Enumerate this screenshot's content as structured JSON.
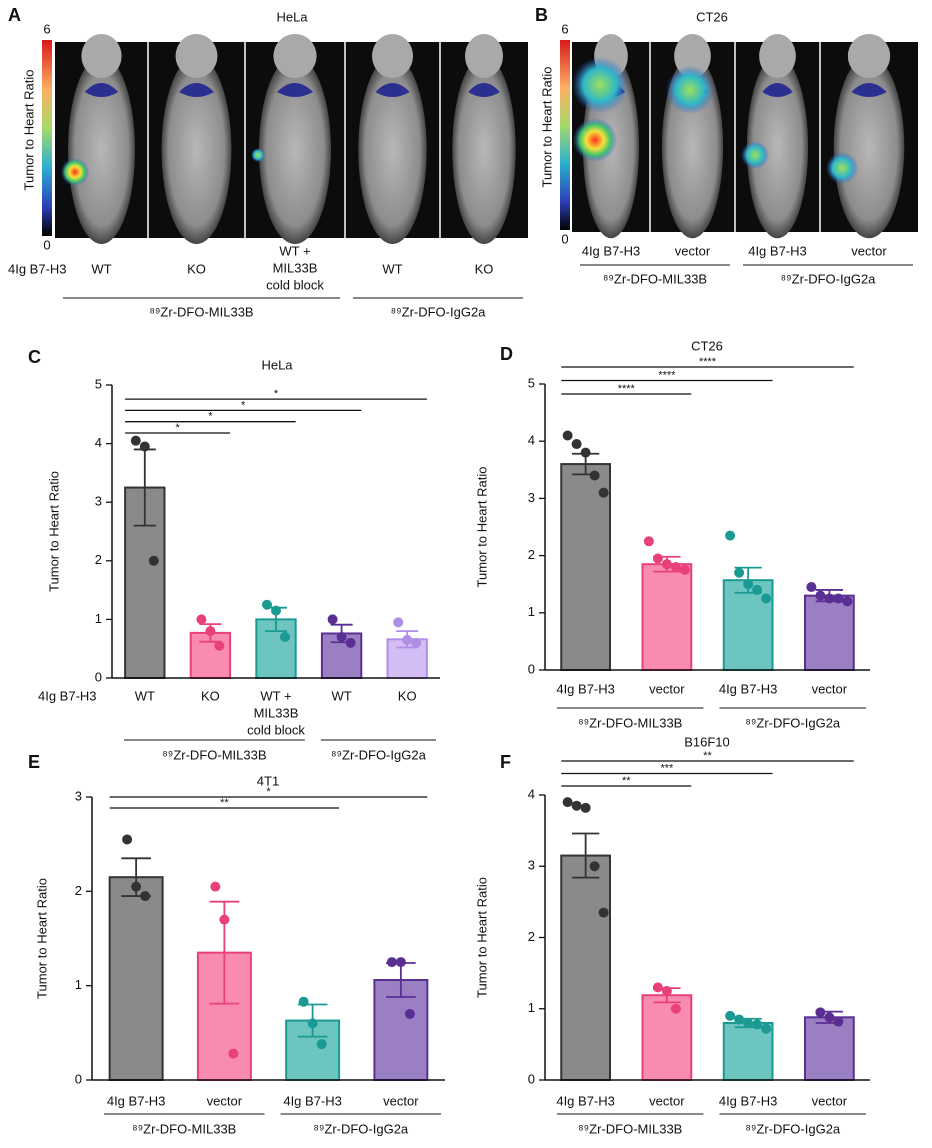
{
  "images": [
    {
      "label": "A",
      "title": "HeLa",
      "scale": [
        0,
        6
      ],
      "axis_label": "Tumor to Heart Ratio",
      "row_label": "4Ig B7-H3",
      "columns": [
        "WT",
        "KO",
        [
          "WT +",
          "MIL33B",
          "cold block"
        ],
        "WT",
        "KO"
      ],
      "groups": [
        {
          "label": "⁸⁹Zr-DFO-MIL33B",
          "from": 0,
          "to": 2
        },
        {
          "label": "⁸⁹Zr-DFO-IgG2a",
          "from": 3,
          "to": 4
        }
      ]
    },
    {
      "label": "B",
      "title": "CT26",
      "scale": [
        0,
        6
      ],
      "axis_label": "Tumor to Heart Ratio",
      "columns": [
        "4Ig B7-H3",
        "vector",
        "4Ig B7-H3",
        "vector"
      ],
      "groups": [
        {
          "label": "⁸⁹Zr-DFO-MIL33B",
          "from": 0,
          "to": 1
        },
        {
          "label": "⁸⁹Zr-DFO-IgG2a",
          "from": 2,
          "to": 3
        }
      ]
    }
  ],
  "chart_data": [
    {
      "type": "bar",
      "panel": "C",
      "title": "HeLa",
      "ylabel": "Tumor to Heart Ratio",
      "row_label": "4Ig B7-H3",
      "categories": [
        "WT",
        "KO",
        [
          "WT +",
          "MIL33B",
          "cold block"
        ],
        "WT",
        "KO"
      ],
      "values": [
        3.25,
        0.77,
        1.0,
        0.76,
        0.66
      ],
      "errors": [
        0.65,
        0.15,
        0.2,
        0.15,
        0.14
      ],
      "points": [
        [
          4.05,
          3.95,
          2.0
        ],
        [
          1.0,
          0.8,
          0.55
        ],
        [
          1.25,
          1.15,
          0.7
        ],
        [
          1.0,
          0.7,
          0.6
        ],
        [
          0.95,
          0.65,
          0.6
        ]
      ],
      "colors": [
        "#8a8a8a",
        "#f98bb0",
        "#6cc5bf",
        "#9b7fc3",
        "#d3bdf5"
      ],
      "edge_colors": [
        "#333333",
        "#e8407a",
        "#1a9a92",
        "#5a2f94",
        "#b18ee6"
      ],
      "ylim": [
        0,
        5
      ],
      "yticks": [
        0,
        1,
        2,
        3,
        4,
        5
      ],
      "significance": [
        {
          "label": "*",
          "from": 0,
          "to": 1
        },
        {
          "label": "*",
          "from": 0,
          "to": 2
        },
        {
          "label": "*",
          "from": 0,
          "to": 3
        },
        {
          "label": "*",
          "from": 0,
          "to": 4
        }
      ],
      "groups": [
        {
          "label": "⁸⁹Zr-DFO-MIL33B",
          "from": 0,
          "to": 2
        },
        {
          "label": "⁸⁹Zr-DFO-IgG2a",
          "from": 3,
          "to": 4
        }
      ]
    },
    {
      "type": "bar",
      "panel": "D",
      "title": "CT26",
      "ylabel": "Tumor to Heart Ratio",
      "categories": [
        "4Ig B7-H3",
        "vector",
        "4Ig B7-H3",
        "vector"
      ],
      "values": [
        3.6,
        1.85,
        1.57,
        1.3
      ],
      "errors": [
        0.18,
        0.13,
        0.22,
        0.1
      ],
      "points": [
        [
          4.1,
          3.95,
          3.8,
          3.4,
          3.1
        ],
        [
          2.25,
          1.95,
          1.85,
          1.8,
          1.75
        ],
        [
          2.35,
          1.7,
          1.5,
          1.4,
          1.25
        ],
        [
          1.45,
          1.3,
          1.25,
          1.25,
          1.2
        ]
      ],
      "colors": [
        "#8a8a8a",
        "#f98bb0",
        "#6cc5bf",
        "#9b7fc3"
      ],
      "edge_colors": [
        "#333333",
        "#e8407a",
        "#1a9a92",
        "#5a2f94"
      ],
      "ylim": [
        0,
        5
      ],
      "yticks": [
        0,
        1,
        2,
        3,
        4,
        5
      ],
      "significance": [
        {
          "label": "****",
          "from": 0,
          "to": 1
        },
        {
          "label": "****",
          "from": 0,
          "to": 2
        },
        {
          "label": "****",
          "from": 0,
          "to": 3
        }
      ],
      "groups": [
        {
          "label": "⁸⁹Zr-DFO-MIL33B",
          "from": 0,
          "to": 1
        },
        {
          "label": "⁸⁹Zr-DFO-IgG2a",
          "from": 2,
          "to": 3
        }
      ]
    },
    {
      "type": "bar",
      "panel": "E",
      "title": "4T1",
      "ylabel": "Tumor to Heart Ratio",
      "categories": [
        "4Ig B7-H3",
        "vector",
        "4Ig B7-H3",
        "vector"
      ],
      "values": [
        2.15,
        1.35,
        0.63,
        1.06
      ],
      "errors": [
        0.2,
        0.54,
        0.17,
        0.18
      ],
      "points": [
        [
          2.55,
          2.05,
          1.95
        ],
        [
          2.05,
          1.7,
          0.28
        ],
        [
          0.83,
          0.6,
          0.38
        ],
        [
          1.25,
          1.25,
          0.7
        ]
      ],
      "colors": [
        "#8a8a8a",
        "#f98bb0",
        "#6cc5bf",
        "#9b7fc3"
      ],
      "edge_colors": [
        "#333333",
        "#e8407a",
        "#1a9a92",
        "#5a2f94"
      ],
      "ylim": [
        0,
        3
      ],
      "yticks": [
        0,
        1,
        2,
        3
      ],
      "significance": [
        {
          "label": "**",
          "from": 0,
          "to": 2
        },
        {
          "label": "*",
          "from": 0,
          "to": 3
        }
      ],
      "groups": [
        {
          "label": "⁸⁹Zr-DFO-MIL33B",
          "from": 0,
          "to": 1
        },
        {
          "label": "⁸⁹Zr-DFO-IgG2a",
          "from": 2,
          "to": 3
        }
      ]
    },
    {
      "type": "bar",
      "panel": "F",
      "title": "B16F10",
      "ylabel": "Tumor to Heart Ratio",
      "categories": [
        "4Ig B7-H3",
        "vector",
        "4Ig B7-H3",
        "vector"
      ],
      "values": [
        3.15,
        1.19,
        0.8,
        0.88
      ],
      "errors": [
        0.31,
        0.1,
        0.06,
        0.08
      ],
      "points": [
        [
          3.9,
          3.85,
          3.82,
          3.0,
          2.35
        ],
        [
          1.3,
          1.25,
          1.0
        ],
        [
          0.9,
          0.85,
          0.8,
          0.78,
          0.72
        ],
        [
          0.95,
          0.88,
          0.82
        ]
      ],
      "colors": [
        "#8a8a8a",
        "#f98bb0",
        "#6cc5bf",
        "#9b7fc3"
      ],
      "edge_colors": [
        "#333333",
        "#e8407a",
        "#1a9a92",
        "#5a2f94"
      ],
      "ylim": [
        0,
        4
      ],
      "yticks": [
        0,
        1,
        2,
        3,
        4
      ],
      "significance": [
        {
          "label": "**",
          "from": 0,
          "to": 1
        },
        {
          "label": "***",
          "from": 0,
          "to": 2
        },
        {
          "label": "**",
          "from": 0,
          "to": 3
        }
      ],
      "groups": [
        {
          "label": "⁸⁹Zr-DFO-MIL33B",
          "from": 0,
          "to": 1
        },
        {
          "label": "⁸⁹Zr-DFO-IgG2a",
          "from": 2,
          "to": 3
        }
      ]
    }
  ]
}
